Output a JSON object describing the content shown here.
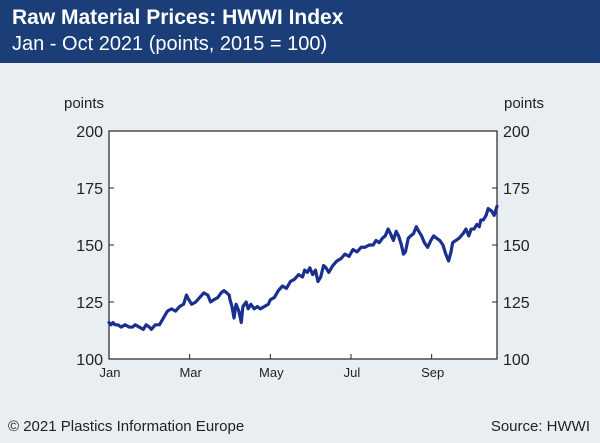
{
  "header": {
    "title": "Raw Material Prices: HWWI Index",
    "subtitle": "Jan - Oct 2021 (points, 2015 = 100)"
  },
  "footer": {
    "copyright": "© 2021 Plastics Information Europe",
    "source": "Source: HWWI"
  },
  "colors": {
    "header_bg": "#1b3e78",
    "line": "#1a2f8f",
    "background": "#e9eef3",
    "plot_bg": "#ffffff"
  },
  "chart_data": {
    "type": "line",
    "ylabel_left": "points",
    "ylabel_right": "points",
    "ylim": [
      100,
      200
    ],
    "yticks": [
      100,
      125,
      150,
      175,
      200
    ],
    "xlim": [
      0,
      9.62
    ],
    "xticks": [
      {
        "value": 0,
        "label": "Jan"
      },
      {
        "value": 2,
        "label": "Mar"
      },
      {
        "value": 4,
        "label": "May"
      },
      {
        "value": 6,
        "label": "Jul"
      },
      {
        "value": 8,
        "label": "Sep"
      }
    ],
    "grid": false,
    "series": [
      {
        "values": [
          [
            0.0,
            116
          ],
          [
            0.05,
            115
          ],
          [
            0.1,
            116
          ],
          [
            0.15,
            115
          ],
          [
            0.22,
            115
          ],
          [
            0.3,
            114
          ],
          [
            0.4,
            115
          ],
          [
            0.5,
            114
          ],
          [
            0.58,
            114
          ],
          [
            0.65,
            115
          ],
          [
            0.75,
            114
          ],
          [
            0.85,
            113
          ],
          [
            0.92,
            115
          ],
          [
            1.0,
            114
          ],
          [
            1.05,
            113
          ],
          [
            1.15,
            115
          ],
          [
            1.25,
            115
          ],
          [
            1.35,
            118
          ],
          [
            1.45,
            121
          ],
          [
            1.55,
            122
          ],
          [
            1.65,
            121
          ],
          [
            1.75,
            123
          ],
          [
            1.85,
            124
          ],
          [
            1.92,
            128
          ],
          [
            1.98,
            126
          ],
          [
            2.05,
            124
          ],
          [
            2.15,
            125
          ],
          [
            2.25,
            127
          ],
          [
            2.35,
            129
          ],
          [
            2.45,
            128
          ],
          [
            2.52,
            125
          ],
          [
            2.6,
            126
          ],
          [
            2.7,
            127
          ],
          [
            2.78,
            129
          ],
          [
            2.85,
            130
          ],
          [
            2.92,
            129
          ],
          [
            2.98,
            128
          ],
          [
            3.0,
            126
          ],
          [
            3.05,
            123
          ],
          [
            3.1,
            118
          ],
          [
            3.15,
            124
          ],
          [
            3.22,
            121
          ],
          [
            3.28,
            116
          ],
          [
            3.32,
            123
          ],
          [
            3.4,
            125
          ],
          [
            3.45,
            122
          ],
          [
            3.52,
            124
          ],
          [
            3.6,
            122
          ],
          [
            3.68,
            123
          ],
          [
            3.75,
            122
          ],
          [
            3.85,
            123
          ],
          [
            3.95,
            124
          ],
          [
            4.0,
            126
          ],
          [
            4.1,
            127
          ],
          [
            4.2,
            130
          ],
          [
            4.3,
            132
          ],
          [
            4.4,
            131
          ],
          [
            4.5,
            134
          ],
          [
            4.6,
            135
          ],
          [
            4.7,
            137
          ],
          [
            4.8,
            136
          ],
          [
            4.85,
            139
          ],
          [
            4.92,
            138
          ],
          [
            4.98,
            140
          ],
          [
            5.05,
            137
          ],
          [
            5.12,
            139
          ],
          [
            5.18,
            134
          ],
          [
            5.25,
            136
          ],
          [
            5.32,
            141
          ],
          [
            5.38,
            140
          ],
          [
            5.45,
            138
          ],
          [
            5.55,
            141
          ],
          [
            5.65,
            143
          ],
          [
            5.75,
            144
          ],
          [
            5.85,
            146
          ],
          [
            5.95,
            145
          ],
          [
            6.05,
            148
          ],
          [
            6.15,
            147
          ],
          [
            6.25,
            149
          ],
          [
            6.35,
            149
          ],
          [
            6.45,
            150
          ],
          [
            6.55,
            150
          ],
          [
            6.62,
            152
          ],
          [
            6.7,
            151
          ],
          [
            6.78,
            153
          ],
          [
            6.85,
            154
          ],
          [
            6.92,
            157
          ],
          [
            6.98,
            155
          ],
          [
            7.05,
            152
          ],
          [
            7.12,
            156
          ],
          [
            7.18,
            154
          ],
          [
            7.25,
            150
          ],
          [
            7.3,
            146
          ],
          [
            7.35,
            147
          ],
          [
            7.42,
            153
          ],
          [
            7.48,
            154
          ],
          [
            7.55,
            155
          ],
          [
            7.62,
            158
          ],
          [
            7.68,
            156
          ],
          [
            7.75,
            154
          ],
          [
            7.82,
            151
          ],
          [
            7.9,
            149
          ],
          [
            7.98,
            152
          ],
          [
            8.05,
            154
          ],
          [
            8.12,
            153
          ],
          [
            8.2,
            152
          ],
          [
            8.28,
            150
          ],
          [
            8.35,
            146
          ],
          [
            8.42,
            143
          ],
          [
            8.48,
            147
          ],
          [
            8.52,
            151
          ],
          [
            8.6,
            152
          ],
          [
            8.68,
            153
          ],
          [
            8.78,
            155
          ],
          [
            8.85,
            157
          ],
          [
            8.92,
            154
          ],
          [
            8.98,
            157
          ],
          [
            9.05,
            157
          ],
          [
            9.12,
            159
          ],
          [
            9.18,
            158
          ],
          [
            9.22,
            161
          ],
          [
            9.28,
            161
          ],
          [
            9.35,
            163
          ],
          [
            9.4,
            166
          ],
          [
            9.48,
            165
          ],
          [
            9.55,
            163
          ],
          [
            9.62,
            167
          ]
        ]
      }
    ]
  }
}
